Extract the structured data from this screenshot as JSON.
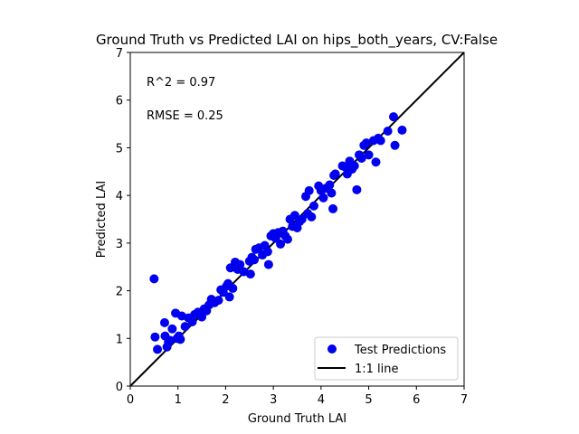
{
  "chart_data": {
    "type": "scatter",
    "title": "Ground Truth vs Predicted LAI on hips_both_years, CV:False",
    "xlabel": "Ground Truth LAI",
    "ylabel": "Predicted LAI",
    "xlim": [
      0,
      7
    ],
    "ylim": [
      0,
      7
    ],
    "xticks": [
      "0",
      "1",
      "2",
      "3",
      "4",
      "5",
      "6",
      "7"
    ],
    "yticks": [
      "0",
      "1",
      "2",
      "3",
      "4",
      "5",
      "6",
      "7"
    ],
    "grid": false,
    "legend_position": "lower-right",
    "annotations": [
      "R^2 = 0.97",
      "RMSE = 0.25"
    ],
    "series": [
      {
        "name": "Test Predictions",
        "kind": "scatter",
        "color": "#0000ee",
        "points": [
          [
            0.5,
            2.25
          ],
          [
            0.52,
            1.03
          ],
          [
            0.57,
            0.77
          ],
          [
            0.72,
            1.33
          ],
          [
            0.73,
            1.05
          ],
          [
            0.77,
            0.82
          ],
          [
            0.8,
            0.93
          ],
          [
            0.83,
            0.96
          ],
          [
            0.88,
            1.2
          ],
          [
            0.95,
            1.53
          ],
          [
            0.98,
            1.0
          ],
          [
            1.02,
            1.05
          ],
          [
            1.05,
            0.98
          ],
          [
            1.08,
            1.47
          ],
          [
            1.15,
            1.25
          ],
          [
            1.22,
            1.43
          ],
          [
            1.3,
            1.35
          ],
          [
            1.35,
            1.5
          ],
          [
            1.42,
            1.55
          ],
          [
            1.5,
            1.45
          ],
          [
            1.55,
            1.62
          ],
          [
            1.6,
            1.58
          ],
          [
            1.65,
            1.7
          ],
          [
            1.7,
            1.82
          ],
          [
            1.77,
            1.75
          ],
          [
            1.85,
            1.8
          ],
          [
            1.9,
            2.02
          ],
          [
            1.95,
            1.97
          ],
          [
            2.02,
            2.1
          ],
          [
            2.05,
            2.15
          ],
          [
            2.08,
            1.87
          ],
          [
            2.1,
            2.48
          ],
          [
            2.15,
            2.05
          ],
          [
            2.2,
            2.6
          ],
          [
            2.25,
            2.45
          ],
          [
            2.3,
            2.55
          ],
          [
            2.38,
            2.4
          ],
          [
            2.5,
            2.62
          ],
          [
            2.52,
            2.35
          ],
          [
            2.55,
            2.7
          ],
          [
            2.6,
            2.65
          ],
          [
            2.63,
            2.87
          ],
          [
            2.7,
            2.9
          ],
          [
            2.77,
            2.75
          ],
          [
            2.82,
            2.95
          ],
          [
            2.88,
            2.82
          ],
          [
            2.9,
            2.55
          ],
          [
            2.95,
            3.15
          ],
          [
            3.0,
            3.2
          ],
          [
            3.05,
            3.1
          ],
          [
            3.1,
            3.22
          ],
          [
            3.15,
            2.98
          ],
          [
            3.2,
            3.25
          ],
          [
            3.25,
            3.15
          ],
          [
            3.3,
            3.08
          ],
          [
            3.35,
            3.5
          ],
          [
            3.4,
            3.35
          ],
          [
            3.45,
            3.58
          ],
          [
            3.5,
            3.32
          ],
          [
            3.55,
            3.45
          ],
          [
            3.6,
            3.5
          ],
          [
            3.68,
            3.98
          ],
          [
            3.72,
            3.62
          ],
          [
            3.75,
            4.1
          ],
          [
            3.8,
            3.55
          ],
          [
            3.85,
            3.78
          ],
          [
            3.95,
            4.2
          ],
          [
            4.0,
            4.1
          ],
          [
            4.05,
            3.95
          ],
          [
            4.1,
            4.15
          ],
          [
            4.18,
            4.22
          ],
          [
            4.22,
            4.05
          ],
          [
            4.25,
            3.72
          ],
          [
            4.27,
            4.42
          ],
          [
            4.3,
            4.45
          ],
          [
            4.45,
            4.62
          ],
          [
            4.5,
            4.6
          ],
          [
            4.55,
            4.45
          ],
          [
            4.6,
            4.72
          ],
          [
            4.65,
            4.55
          ],
          [
            4.7,
            4.62
          ],
          [
            4.75,
            4.12
          ],
          [
            4.8,
            4.85
          ],
          [
            4.85,
            4.78
          ],
          [
            4.9,
            5.05
          ],
          [
            4.95,
            5.1
          ],
          [
            5.0,
            4.85
          ],
          [
            5.1,
            5.15
          ],
          [
            5.15,
            4.7
          ],
          [
            5.2,
            5.2
          ],
          [
            5.25,
            5.15
          ],
          [
            5.4,
            5.35
          ],
          [
            5.52,
            5.65
          ],
          [
            5.55,
            5.05
          ],
          [
            5.7,
            5.37
          ]
        ]
      },
      {
        "name": "1:1 line",
        "kind": "line",
        "color": "#000000",
        "points": [
          [
            0,
            0
          ],
          [
            7,
            7
          ]
        ]
      }
    ]
  }
}
